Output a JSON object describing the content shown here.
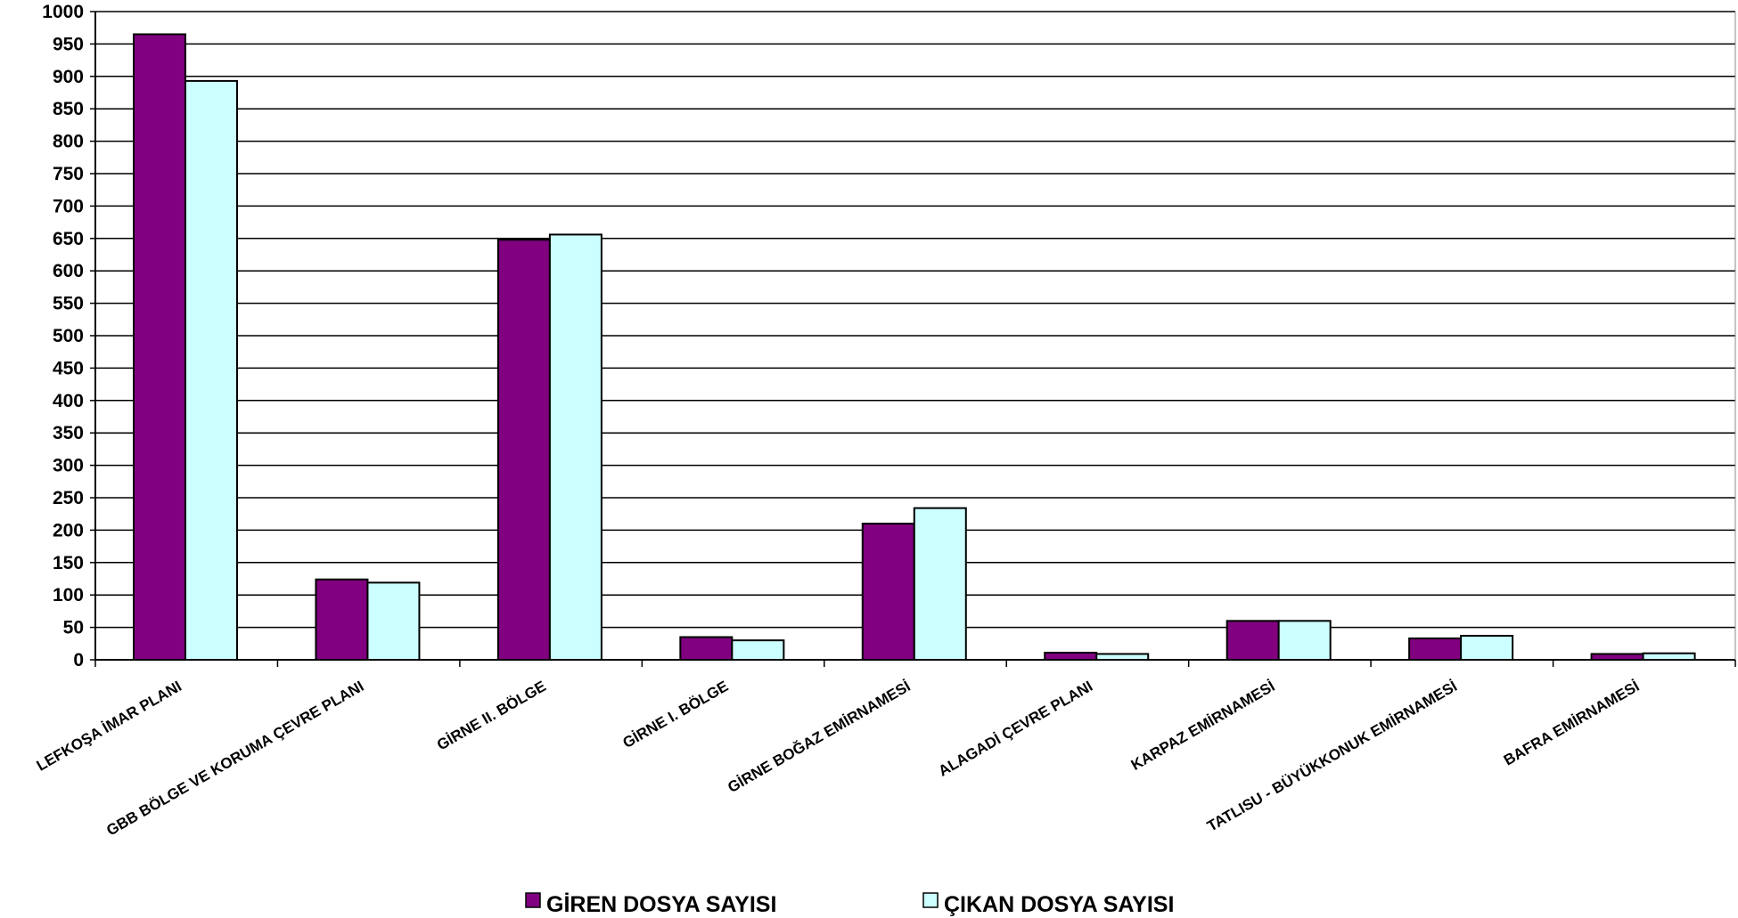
{
  "chart_data": {
    "type": "bar",
    "categories": [
      "LEFKOŞA İMAR PLANI",
      "GBB BÖLGE VE KORUMA ÇEVRE PLANI",
      "GİRNE II. BÖLGE",
      "GİRNE I. BÖLGE",
      "GİRNE BOĞAZ EMİRNAMESİ",
      "ALAGADİ ÇEVRE PLANI",
      "KARPAZ EMİRNAMESİ",
      "TATLISU - BÜYÜKKONUK EMİRNAMESİ",
      "BAFRA EMİRNAMESİ"
    ],
    "series": [
      {
        "name": "GİREN DOSYA SAYISI",
        "color": "#800080",
        "values": [
          965,
          124,
          648,
          35,
          210,
          11,
          60,
          33,
          9
        ]
      },
      {
        "name": "ÇIKAN DOSYA SAYISI",
        "color": "#ccffff",
        "values": [
          893,
          119,
          656,
          30,
          234,
          9,
          60,
          37,
          10
        ]
      }
    ],
    "yticks": [
      "0",
      "50",
      "100",
      "150",
      "200",
      "250",
      "300",
      "350",
      "400",
      "450",
      "500",
      "550",
      "600",
      "650",
      "700",
      "750",
      "800",
      "850",
      "900",
      "950",
      "1000"
    ],
    "ylim": [
      0,
      1000
    ],
    "grid": true,
    "legend": "bottom"
  }
}
